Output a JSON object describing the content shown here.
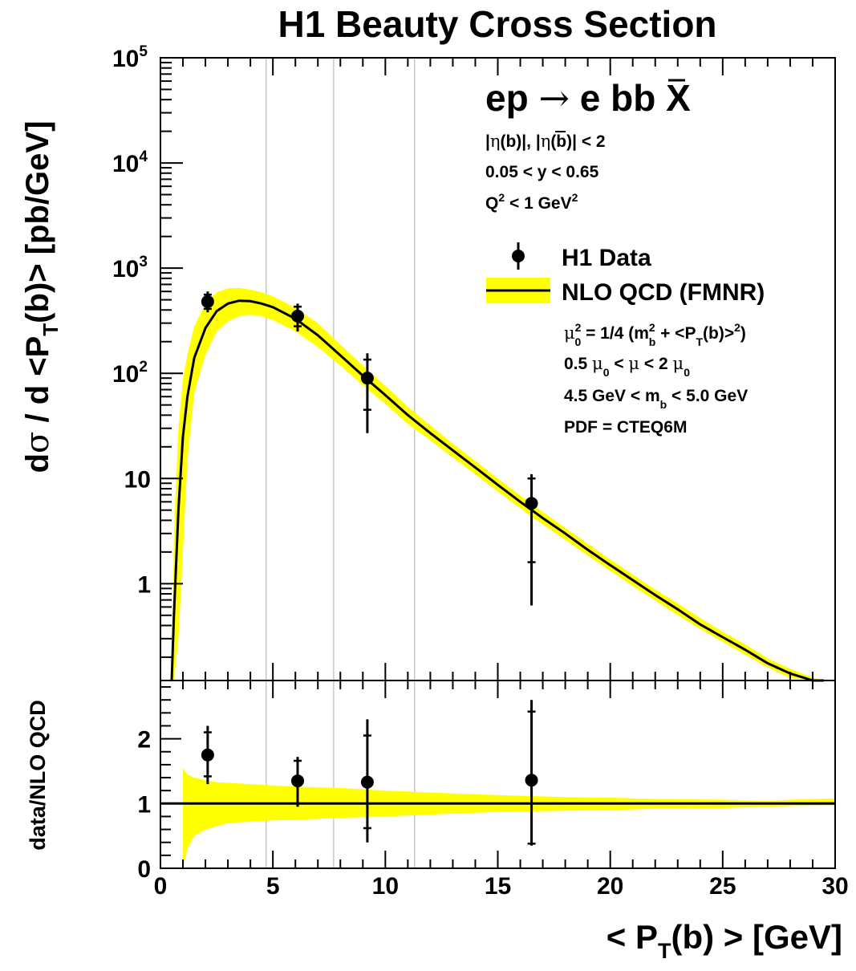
{
  "chart_data": [
    {
      "type": "scatter",
      "panel": "main",
      "title": "H1 Beauty Cross Section",
      "ylabel_parts": [
        "dσ / d <P",
        "T",
        "(b)> [pb/GeV]"
      ],
      "ylabel": "dσ / d <P_T(b)> [pb/GeV]",
      "y_scale": "log",
      "ylim": [
        0.12,
        100000
      ],
      "xlim": [
        0,
        30
      ],
      "y_tick_labels": [
        "1",
        "10",
        "10^2",
        "10^3",
        "10^4",
        "10^5"
      ],
      "grid": "vertical lines at bin edges",
      "bin_edges": [
        4.7,
        7.7,
        11.3
      ],
      "legend_position": "top-right",
      "process_label": "ep → e bb̄ X",
      "cuts": [
        "|η(b)|, |η(b̄)| < 2",
        "0.05 < y < 0.65",
        "Q² < 1 GeV²"
      ],
      "legend": {
        "data_label": "H1 Data",
        "theory_label": "NLO QCD (FMNR)",
        "band_color": "#ffff00"
      },
      "theory_params": [
        "μ0² = 1/4 (mb² + <PT(b)>²)",
        "0.5 μ0 < μ < 2 μ0",
        "4.5 GeV < mb < 5.0 GeV",
        "PDF = CTEQ6M"
      ],
      "series": [
        {
          "name": "H1 Data",
          "x": [
            2.1,
            6.1,
            9.2,
            16.5
          ],
          "y": [
            480,
            350,
            90,
            5.8
          ],
          "stat_low": [
            410,
            280,
            45,
            1.6
          ],
          "stat_high": [
            560,
            430,
            135,
            10
          ],
          "tot_low": [
            380,
            250,
            27,
            0.62
          ],
          "tot_high": [
            600,
            460,
            155,
            11
          ]
        },
        {
          "name": "NLO QCD (FMNR)",
          "x": [
            0.5,
            0.6,
            0.8,
            1.0,
            1.2,
            1.5,
            2.0,
            2.5,
            3.0,
            3.5,
            4.0,
            4.5,
            5.0,
            6.0,
            7.0,
            8.0,
            9.0,
            10.0,
            11.0,
            12.0,
            13.0,
            14.0,
            15.0,
            16.0,
            17.0,
            18.0,
            19.0,
            20.0,
            21.0,
            22.0,
            23.0,
            24.0,
            25.0,
            26.0,
            27.0,
            28.0,
            29.0,
            29.5
          ],
          "y": [
            0.12,
            0.5,
            5,
            25,
            60,
            140,
            270,
            390,
            460,
            490,
            485,
            460,
            425,
            330,
            230,
            148,
            95,
            62,
            40,
            27,
            18.5,
            12.7,
            8.7,
            6.0,
            4.2,
            3.0,
            2.1,
            1.5,
            1.08,
            0.78,
            0.57,
            0.41,
            0.31,
            0.235,
            0.175,
            0.14,
            0.117,
            0.106
          ],
          "band_low": [
            0.12,
            0.12,
            0.3,
            2,
            15,
            65,
            150,
            250,
            310,
            350,
            360,
            350,
            320,
            250,
            178,
            118,
            77,
            51,
            33,
            23,
            15.8,
            10.9,
            7.5,
            5.2,
            3.65,
            2.6,
            1.85,
            1.32,
            0.95,
            0.69,
            0.5,
            0.37,
            0.28,
            0.21,
            0.16,
            0.127,
            0.106,
            0.097
          ],
          "band_high": [
            0.12,
            3,
            30,
            90,
            150,
            280,
            460,
            590,
            640,
            650,
            625,
            590,
            540,
            420,
            300,
            188,
            118,
            76,
            48,
            32,
            21.5,
            14.7,
            10,
            6.9,
            4.8,
            3.4,
            2.4,
            1.7,
            1.22,
            0.88,
            0.65,
            0.47,
            0.35,
            0.265,
            0.195,
            0.155,
            0.128,
            0.116
          ]
        }
      ]
    },
    {
      "type": "scatter",
      "panel": "ratio",
      "ylabel": "data/NLO QCD",
      "xlabel_parts": [
        "< P",
        "T",
        "(b) > [GeV]"
      ],
      "xlabel": "< P_T(b) > [GeV]",
      "xlim": [
        0,
        30
      ],
      "ylim": [
        0,
        2.9
      ],
      "x_ticks": [
        0,
        5,
        10,
        15,
        20,
        25,
        30
      ],
      "y_ticks": [
        0,
        1,
        2
      ],
      "series": [
        {
          "name": "data/NLO QCD",
          "x": [
            2.1,
            6.1,
            9.2,
            16.5
          ],
          "y": [
            1.75,
            1.35,
            1.33,
            1.36
          ],
          "stat_low": [
            1.42,
            1.0,
            0.62,
            0.38
          ],
          "stat_high": [
            2.1,
            1.66,
            2.05,
            2.42
          ],
          "tot_low": [
            1.3,
            0.95,
            0.4,
            0.35
          ],
          "tot_high": [
            2.2,
            1.72,
            2.3,
            2.6
          ]
        },
        {
          "name": "NLO QCD band",
          "x": [
            1.0,
            1.2,
            1.5,
            2.0,
            2.5,
            3.0,
            4.0,
            5.0,
            6.0,
            8.0,
            10.0,
            12.0,
            15.0,
            18.0,
            20.0,
            22.0,
            25.0,
            27.0,
            28.0,
            30.0
          ],
          "y": [
            1,
            1,
            1,
            1,
            1,
            1,
            1,
            1,
            1,
            1,
            1,
            1,
            1,
            1,
            1,
            1,
            1,
            1,
            1,
            1
          ],
          "band_low": [
            0.0,
            0.3,
            0.5,
            0.6,
            0.65,
            0.7,
            0.72,
            0.74,
            0.75,
            0.78,
            0.8,
            0.83,
            0.87,
            0.89,
            0.9,
            0.92,
            0.93,
            0.95,
            0.96,
            0.97
          ],
          "band_high": [
            1.55,
            1.45,
            1.4,
            1.36,
            1.33,
            1.32,
            1.3,
            1.28,
            1.26,
            1.24,
            1.2,
            1.17,
            1.13,
            1.1,
            1.09,
            1.07,
            1.06,
            1.04,
            1.06,
            1.08
          ]
        }
      ]
    }
  ]
}
